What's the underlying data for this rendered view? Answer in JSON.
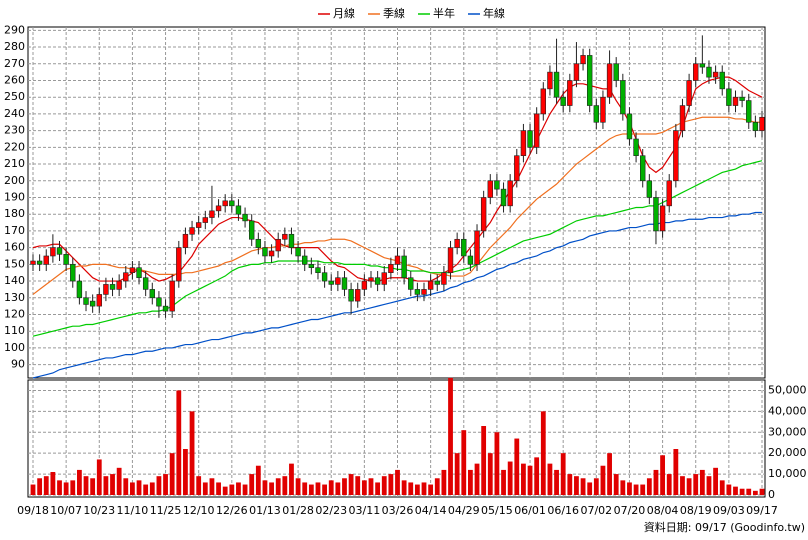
{
  "chart_data": {
    "type": "candlestick",
    "legend": "top",
    "grid": true,
    "footer": "資料日期: 09/17 (Goodinfo.tw)",
    "up_color": "#ff0000",
    "down_color": "#00b000",
    "categories": [
      "09/18",
      null,
      null,
      null,
      null,
      "10/07",
      null,
      null,
      null,
      null,
      "10/23",
      null,
      null,
      null,
      null,
      "11/10",
      null,
      null,
      null,
      null,
      "11/25",
      null,
      null,
      null,
      null,
      "12/10",
      null,
      null,
      null,
      null,
      "12/26",
      null,
      null,
      null,
      null,
      "01/13",
      null,
      null,
      null,
      null,
      "01/28",
      null,
      null,
      null,
      null,
      "02/23",
      null,
      null,
      null,
      null,
      "03/11",
      null,
      null,
      null,
      null,
      "03/26",
      null,
      null,
      null,
      null,
      "04/14",
      null,
      null,
      null,
      null,
      "04/29",
      null,
      null,
      null,
      null,
      "05/15",
      null,
      null,
      null,
      null,
      "06/01",
      null,
      null,
      null,
      null,
      "06/16",
      null,
      null,
      null,
      null,
      "07/02",
      null,
      null,
      null,
      null,
      "07/20",
      null,
      null,
      null,
      null,
      "08/04",
      null,
      null,
      null,
      null,
      "08/19",
      null,
      null,
      null,
      null,
      "09/03",
      null,
      null,
      null,
      null,
      "09/17"
    ],
    "open": [
      150,
      152,
      150,
      155,
      160,
      156,
      150,
      140,
      130,
      128,
      125,
      132,
      138,
      135,
      140,
      145,
      148,
      142,
      135,
      130,
      125,
      122,
      140,
      160,
      168,
      172,
      175,
      178,
      182,
      185,
      188,
      185,
      180,
      176,
      165,
      160,
      155,
      158,
      165,
      168,
      160,
      155,
      150,
      148,
      145,
      140,
      138,
      142,
      135,
      128,
      135,
      140,
      142,
      138,
      145,
      150,
      155,
      142,
      135,
      132,
      135,
      140,
      138,
      145,
      160,
      165,
      155,
      150,
      170,
      190,
      200,
      195,
      185,
      200,
      215,
      230,
      220,
      240,
      255,
      265,
      250,
      245,
      260,
      270,
      275,
      245,
      235,
      250,
      270,
      260,
      240,
      225,
      215,
      200,
      190,
      170,
      185,
      200,
      230,
      245,
      260,
      270,
      268,
      262,
      265,
      255,
      245,
      250,
      248,
      235,
      230
    ],
    "high": [
      156,
      156,
      159,
      168,
      164,
      160,
      154,
      144,
      134,
      132,
      136,
      142,
      142,
      144,
      149,
      152,
      152,
      146,
      139,
      134,
      129,
      144,
      164,
      172,
      176,
      179,
      182,
      197,
      189,
      192,
      192,
      189,
      184,
      180,
      169,
      164,
      162,
      169,
      172,
      172,
      164,
      159,
      154,
      152,
      149,
      144,
      146,
      146,
      139,
      139,
      144,
      146,
      146,
      149,
      154,
      160,
      159,
      146,
      139,
      139,
      144,
      144,
      149,
      164,
      169,
      169,
      159,
      174,
      194,
      204,
      204,
      199,
      204,
      219,
      234,
      234,
      244,
      259,
      269,
      285,
      254,
      264,
      283,
      279,
      279,
      249,
      254,
      278,
      274,
      264,
      244,
      229,
      219,
      204,
      194,
      189,
      204,
      234,
      249,
      264,
      274,
      287,
      272,
      269,
      269,
      259,
      254,
      254,
      252,
      239,
      242
    ],
    "low": [
      146,
      146,
      146,
      151,
      152,
      146,
      136,
      126,
      122,
      121,
      121,
      128,
      131,
      131,
      136,
      141,
      138,
      131,
      126,
      118,
      118,
      118,
      136,
      156,
      164,
      168,
      171,
      174,
      178,
      181,
      181,
      176,
      172,
      161,
      156,
      151,
      151,
      154,
      161,
      156,
      151,
      146,
      144,
      141,
      136,
      134,
      134,
      131,
      120,
      124,
      131,
      136,
      134,
      134,
      141,
      146,
      138,
      131,
      128,
      128,
      131,
      134,
      134,
      141,
      156,
      151,
      146,
      146,
      166,
      186,
      191,
      181,
      181,
      196,
      211,
      216,
      216,
      236,
      251,
      246,
      241,
      241,
      256,
      266,
      241,
      231,
      231,
      246,
      256,
      236,
      221,
      211,
      196,
      186,
      162,
      166,
      181,
      196,
      226,
      241,
      256,
      264,
      258,
      258,
      251,
      241,
      241,
      244,
      231,
      226,
      226
    ],
    "close": [
      152,
      150,
      155,
      160,
      156,
      150,
      140,
      130,
      126,
      125,
      132,
      138,
      135,
      140,
      145,
      148,
      142,
      135,
      130,
      125,
      122,
      140,
      160,
      168,
      172,
      175,
      178,
      182,
      185,
      188,
      185,
      180,
      176,
      165,
      160,
      155,
      158,
      165,
      168,
      160,
      155,
      150,
      148,
      145,
      140,
      138,
      142,
      135,
      128,
      135,
      140,
      142,
      138,
      145,
      150,
      155,
      142,
      135,
      132,
      135,
      140,
      138,
      145,
      160,
      165,
      155,
      150,
      170,
      190,
      200,
      195,
      185,
      200,
      215,
      230,
      220,
      240,
      255,
      265,
      250,
      245,
      260,
      270,
      275,
      245,
      235,
      250,
      270,
      260,
      240,
      225,
      215,
      200,
      190,
      170,
      185,
      200,
      230,
      245,
      260,
      270,
      268,
      262,
      265,
      255,
      245,
      250,
      248,
      235,
      230,
      238
    ],
    "series": [
      {
        "name": "月線",
        "color": "#dd0000",
        "values": [
          160,
          161,
          161,
          162,
          162,
          158,
          154,
          150,
          146,
          142,
          140,
          140,
          140,
          140,
          142,
          145,
          147,
          145,
          142,
          140,
          141,
          143,
          145,
          150,
          155,
          162,
          166,
          170,
          174,
          176,
          178,
          178,
          177,
          176,
          175,
          171,
          167,
          163,
          161,
          160,
          160,
          160,
          160,
          160,
          156,
          152,
          149,
          148,
          145,
          142,
          141,
          140,
          140,
          141,
          142,
          142,
          142,
          141,
          140,
          140,
          140,
          142,
          145,
          147,
          150,
          155,
          160,
          165,
          170,
          175,
          182,
          188,
          194,
          200,
          208,
          216,
          224,
          232,
          240,
          246,
          252,
          256,
          258,
          258,
          257,
          256,
          255,
          255,
          248,
          242,
          235,
          225,
          215,
          208,
          205,
          208,
          214,
          220,
          232,
          244,
          255,
          258,
          260,
          261,
          262,
          262,
          260,
          257,
          254,
          252,
          250
        ]
      },
      {
        "name": "季線",
        "color": "#f07020",
        "values": [
          132,
          135,
          138,
          141,
          144,
          147,
          148,
          149,
          149,
          150,
          150,
          150,
          149,
          148,
          148,
          147,
          147,
          146,
          145,
          144,
          144,
          144,
          144,
          145,
          145,
          146,
          147,
          148,
          149,
          151,
          152,
          154,
          156,
          158,
          159,
          160,
          160,
          161,
          161,
          162,
          162,
          163,
          163,
          164,
          164,
          165,
          165,
          165,
          164,
          162,
          160,
          158,
          156,
          154,
          153,
          152,
          150,
          149,
          148,
          146,
          145,
          144,
          144,
          143,
          143,
          143,
          145,
          150,
          155,
          160,
          164,
          168,
          172,
          177,
          181,
          185,
          189,
          192,
          195,
          198,
          202,
          206,
          210,
          213,
          216,
          219,
          222,
          225,
          227,
          228,
          228,
          228,
          228,
          228,
          228,
          229,
          231,
          233,
          235,
          236,
          237,
          238,
          238,
          238,
          238,
          238,
          237,
          237,
          236,
          235,
          235
        ]
      },
      {
        "name": "半年",
        "color": "#00cc00",
        "values": [
          107,
          108,
          109,
          110,
          111,
          112,
          113,
          113,
          114,
          114,
          115,
          116,
          117,
          118,
          119,
          120,
          121,
          121,
          122,
          122,
          123,
          125,
          128,
          131,
          133,
          135,
          137,
          139,
          141,
          143,
          146,
          148,
          149,
          150,
          150,
          151,
          151,
          152,
          152,
          152,
          152,
          152,
          152,
          152,
          151,
          151,
          151,
          150,
          150,
          150,
          150,
          149,
          149,
          148,
          148,
          147,
          147,
          146,
          146,
          146,
          145,
          145,
          145,
          145,
          146,
          147,
          148,
          150,
          152,
          154,
          156,
          158,
          160,
          162,
          164,
          165,
          166,
          167,
          168,
          170,
          172,
          174,
          176,
          177,
          178,
          179,
          179,
          180,
          181,
          182,
          183,
          184,
          184,
          185,
          185,
          187,
          189,
          191,
          193,
          195,
          197,
          199,
          201,
          203,
          205,
          206,
          207,
          209,
          210,
          211,
          212
        ]
      },
      {
        "name": "年線",
        "color": "#0050c8",
        "values": [
          82,
          83,
          84,
          85,
          87,
          88,
          89,
          90,
          91,
          92,
          93,
          94,
          94,
          95,
          96,
          96,
          97,
          98,
          98,
          99,
          100,
          100,
          101,
          102,
          102,
          103,
          104,
          105,
          105,
          106,
          107,
          108,
          109,
          109,
          110,
          111,
          112,
          112,
          113,
          114,
          115,
          116,
          117,
          117,
          118,
          119,
          120,
          121,
          121,
          122,
          123,
          124,
          125,
          126,
          127,
          128,
          129,
          130,
          131,
          131,
          132,
          133,
          134,
          136,
          137,
          139,
          140,
          142,
          143,
          145,
          147,
          148,
          150,
          151,
          153,
          154,
          155,
          157,
          158,
          160,
          161,
          163,
          164,
          165,
          167,
          168,
          169,
          170,
          170,
          171,
          172,
          172,
          173,
          174,
          174,
          175,
          175,
          176,
          176,
          177,
          177,
          177,
          178,
          178,
          178,
          179,
          179,
          180,
          180,
          181,
          181
        ]
      }
    ],
    "ylim": [
      82,
      292
    ],
    "yticks": [
      90,
      100,
      110,
      120,
      130,
      140,
      150,
      160,
      170,
      180,
      190,
      200,
      210,
      220,
      230,
      240,
      250,
      260,
      270,
      280,
      290
    ],
    "volume": {
      "type": "bar",
      "color": "#e00000",
      "values": [
        5000,
        8000,
        9000,
        11000,
        7000,
        6000,
        7000,
        12000,
        9000,
        8000,
        17000,
        9000,
        10000,
        13000,
        8000,
        6000,
        7000,
        5000,
        6000,
        9000,
        10000,
        20000,
        50000,
        22000,
        40000,
        9000,
        6000,
        8000,
        6000,
        4000,
        5000,
        6000,
        5000,
        10000,
        14000,
        7000,
        6000,
        8000,
        9000,
        15000,
        8000,
        6000,
        5000,
        6000,
        5000,
        7000,
        6000,
        8000,
        10000,
        9000,
        7000,
        8000,
        6000,
        9000,
        10000,
        12000,
        7000,
        6000,
        5000,
        6000,
        5000,
        8000,
        12000,
        56000,
        20000,
        31000,
        12000,
        15000,
        33000,
        20000,
        30000,
        12000,
        16000,
        27000,
        15000,
        14000,
        18000,
        40000,
        15000,
        12000,
        20000,
        10000,
        9000,
        8000,
        6000,
        8000,
        14000,
        20000,
        10000,
        7000,
        6000,
        5000,
        5000,
        8000,
        12000,
        19000,
        10000,
        22000,
        9000,
        8000,
        10000,
        12000,
        9000,
        13000,
        7000,
        5000,
        4000,
        3000,
        3000,
        2000,
        3000
      ],
      "ylim": [
        0,
        55000
      ],
      "yticks": [
        0,
        {
          "value": 10000,
          "label": "10,000"
        },
        {
          "value": 20000,
          "label": "20,000"
        },
        {
          "value": 30000,
          "label": "30,000"
        },
        {
          "value": 40000,
          "label": "40,000"
        },
        {
          "value": 50000,
          "label": "50,000"
        }
      ]
    }
  }
}
